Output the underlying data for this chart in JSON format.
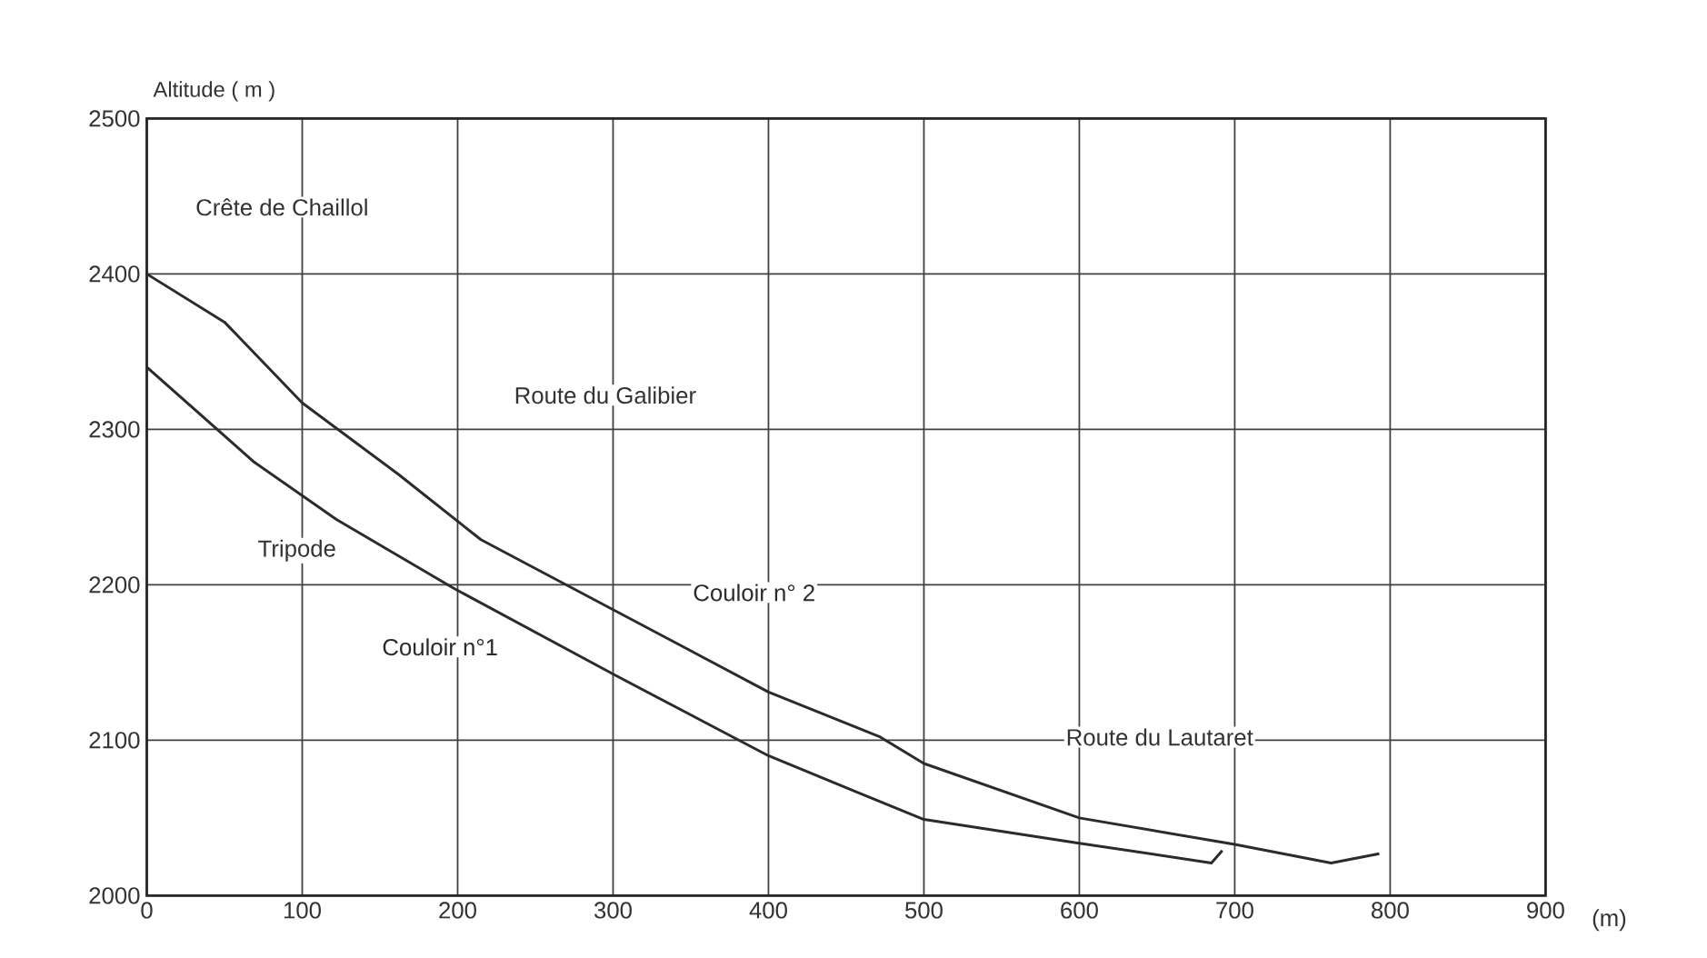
{
  "chart_data": {
    "type": "line",
    "xlabel": "(m)",
    "ylabel": "Altitude ( m )",
    "xlim": [
      0,
      900
    ],
    "ylim": [
      2000,
      2500
    ],
    "xticks": [
      0,
      100,
      200,
      300,
      400,
      500,
      600,
      700,
      800,
      900
    ],
    "yticks": [
      2000,
      2100,
      2200,
      2300,
      2400,
      2500
    ],
    "grid": true,
    "marker": "none",
    "line_style": "solid",
    "series": [
      {
        "name": "Couloir n° 2",
        "color": "#2b2b2b",
        "x": [
          0,
          50,
          100,
          162,
          215,
          300,
          400,
          472,
          500,
          600,
          700,
          762,
          793
        ],
        "values": [
          2400,
          2369,
          2317,
          2271,
          2229,
          2184,
          2131,
          2102,
          2085,
          2050,
          2033,
          2021,
          2027
        ]
      },
      {
        "name": "Couloir n°1",
        "color": "#2b2b2b",
        "x": [
          0,
          69,
          122,
          197,
          301,
          400,
          456,
          500,
          598,
          685,
          692
        ],
        "values": [
          2340,
          2279,
          2242,
          2198,
          2142,
          2090,
          2067,
          2049,
          2034,
          2021,
          2029
        ]
      }
    ],
    "annotations": [
      "Crête de Chaillol",
      "Route du Galibier",
      "Tripode",
      "Route du Lautaret"
    ]
  }
}
